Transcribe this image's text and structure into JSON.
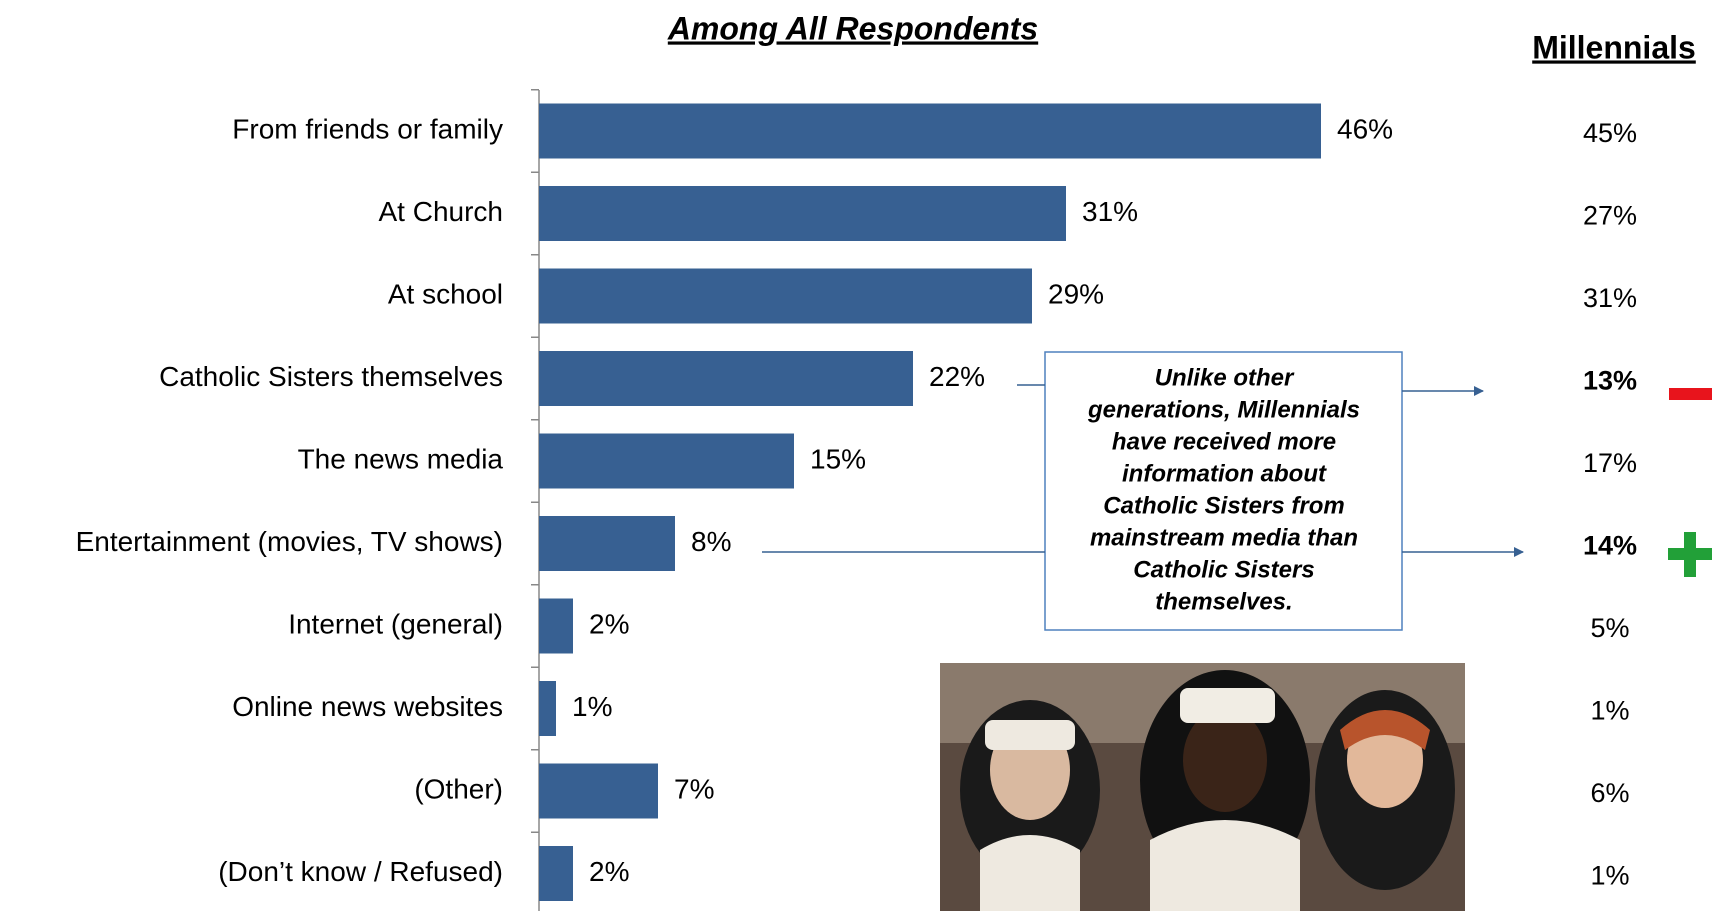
{
  "chart_data": {
    "type": "bar",
    "title": "Among All Respondents",
    "categories": [
      "From friends or family",
      "At Church",
      "At school",
      "Catholic Sisters themselves",
      "The news media",
      "Entertainment (movies, TV shows)",
      "Internet (general)",
      "Online news websites",
      "(Other)",
      "(Don’t know / Refused)"
    ],
    "values": [
      46,
      31,
      29,
      22,
      15,
      8,
      2,
      1,
      7,
      2
    ],
    "value_labels": [
      "46%",
      "31%",
      "29%",
      "22%",
      "15%",
      "8%",
      "2%",
      "1%",
      "7%",
      "2%"
    ],
    "color": "#376092",
    "xlim": [
      0,
      60
    ],
    "millennials": {
      "title": "Millennials",
      "values": [
        45,
        27,
        31,
        13,
        17,
        14,
        5,
        1,
        6,
        1
      ],
      "value_labels": [
        "45%",
        "27%",
        "31%",
        "13%",
        "17%",
        "14%",
        "5%",
        "1%",
        "6%",
        "1%"
      ],
      "bold": [
        3,
        5
      ]
    },
    "annotation": [
      "Unlike other",
      "generations, Millennials",
      "have received more",
      "information about",
      "Catholic Sisters from",
      "mainstream media than",
      "Catholic Sisters",
      "themselves."
    ]
  }
}
